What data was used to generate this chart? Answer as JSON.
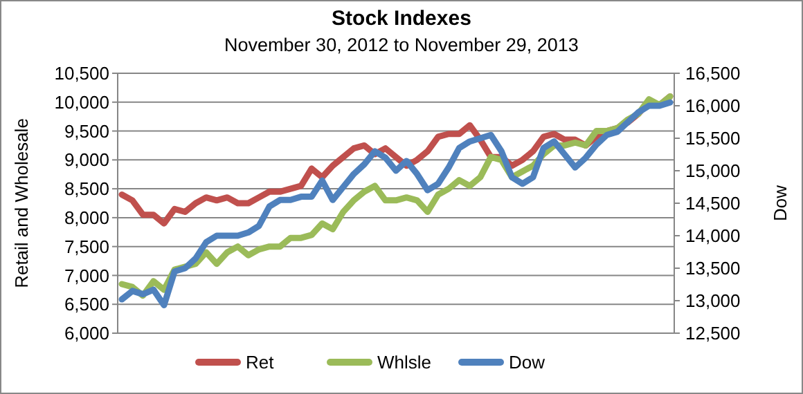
{
  "chart_data": {
    "type": "line",
    "title": "Stock Indexes",
    "subtitle": "November 30, 2012 to November 29, 2013",
    "ylabel": "Retail and Wholesale",
    "y2label": "Dow",
    "categories": [
      null,
      null,
      null,
      null,
      null,
      null,
      null,
      null,
      null,
      null,
      null,
      null,
      null,
      null,
      null,
      null,
      null,
      null,
      null,
      null,
      null,
      null,
      null,
      null,
      null,
      null,
      null,
      null,
      null,
      null,
      null,
      null,
      null,
      null,
      null,
      null,
      null,
      null,
      null,
      null,
      null,
      null,
      null,
      null,
      null,
      null,
      null,
      null,
      null,
      null,
      null,
      null,
      null
    ],
    "series": [
      {
        "name": "Ret",
        "color": "#c0504d",
        "values": [
          8400,
          8300,
          8050,
          8050,
          7900,
          8150,
          8100,
          8250,
          8350,
          8300,
          8350,
          8250,
          8250,
          8350,
          8450,
          8450,
          8500,
          8550,
          8850,
          8700,
          8900,
          9050,
          9200,
          9250,
          9100,
          9200,
          9050,
          8900,
          9000,
          9150,
          9400,
          9450,
          9450,
          9600,
          9350,
          9050,
          9050,
          8900,
          9000,
          9150,
          9400,
          9450,
          9350,
          9350,
          9250,
          9400,
          9500,
          9550,
          9650,
          9800,
          10000,
          9950,
          10100
        ]
      },
      {
        "name": "Whlsle",
        "color": "#9bbb59",
        "values": [
          6850,
          6800,
          6650,
          6900,
          6750,
          7100,
          7150,
          7200,
          7400,
          7200,
          7400,
          7500,
          7350,
          7450,
          7500,
          7500,
          7650,
          7650,
          7700,
          7900,
          7800,
          8100,
          8300,
          8450,
          8550,
          8300,
          8300,
          8350,
          8300,
          8100,
          8400,
          8500,
          8650,
          8550,
          8700,
          9050,
          9000,
          8700,
          8800,
          8900,
          9100,
          9250,
          9250,
          9300,
          9250,
          9500,
          9500,
          9550,
          9700,
          9800,
          10050,
          9950,
          10100
        ]
      },
      {
        "name": "Dow",
        "color": "#4f81bd",
        "axis": "y2",
        "values": [
          13020,
          13150,
          13100,
          13170,
          12930,
          13450,
          13500,
          13650,
          13900,
          14000,
          14000,
          14000,
          14050,
          14150,
          14450,
          14550,
          14550,
          14600,
          14600,
          14850,
          14550,
          14750,
          14950,
          15100,
          15300,
          15200,
          15000,
          15150,
          14950,
          14700,
          14800,
          15050,
          15350,
          15450,
          15500,
          15550,
          15300,
          14900,
          14800,
          14900,
          15350,
          15450,
          15250,
          15050,
          15200,
          15400,
          15550,
          15600,
          15750,
          15900,
          16000,
          16000,
          16050
        ]
      }
    ],
    "ylim": [
      6000,
      10500
    ],
    "yticks": [
      {
        "value": 6000,
        "label": "6,000"
      },
      {
        "value": 6500,
        "label": "6,500"
      },
      {
        "value": 7000,
        "label": "7,000"
      },
      {
        "value": 7500,
        "label": "7,500"
      },
      {
        "value": 8000,
        "label": "8,000"
      },
      {
        "value": 8500,
        "label": "8,500"
      },
      {
        "value": 9000,
        "label": "9,000"
      },
      {
        "value": 9500,
        "label": "9,500"
      },
      {
        "value": 10000,
        "label": "10,000"
      },
      {
        "value": 10500,
        "label": "10,500"
      }
    ],
    "y2lim": [
      12500,
      16500
    ],
    "y2ticks": [
      {
        "value": 12500,
        "label": "12,500"
      },
      {
        "value": 13000,
        "label": "13,000"
      },
      {
        "value": 13500,
        "label": "13,500"
      },
      {
        "value": 14000,
        "label": "14,000"
      },
      {
        "value": 14500,
        "label": "14,500"
      },
      {
        "value": 15000,
        "label": "15,000"
      },
      {
        "value": 15500,
        "label": "15,500"
      },
      {
        "value": 16000,
        "label": "16,000"
      },
      {
        "value": 16500,
        "label": "16,500"
      }
    ],
    "grid": "y",
    "legend": "bottom",
    "marker": "none",
    "line_style": "solid"
  }
}
